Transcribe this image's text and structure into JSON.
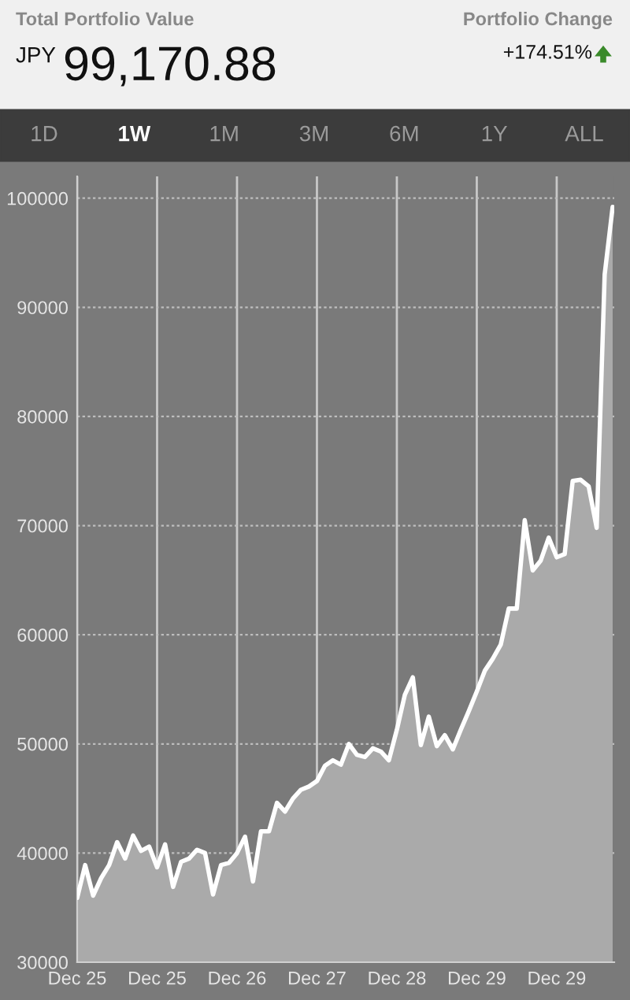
{
  "chart_data": {
    "type": "area",
    "title": "Total Portfolio Value",
    "subtitle": "99,170.88",
    "annotations": [
      "JPY",
      "Portfolio Change",
      "+174.51%",
      "1D",
      "1W",
      "1M",
      "3M",
      "6M",
      "1Y",
      "ALL"
    ],
    "categories": [
      "Dec 25",
      null,
      null,
      null,
      null,
      null,
      null,
      null,
      null,
      null,
      "Dec 25",
      null,
      null,
      null,
      null,
      null,
      null,
      null,
      null,
      null,
      "Dec 26",
      null,
      null,
      null,
      null,
      null,
      null,
      null,
      null,
      null,
      "Dec 27",
      null,
      null,
      null,
      null,
      null,
      null,
      null,
      null,
      null,
      "Dec 28",
      null,
      null,
      null,
      null,
      null,
      null,
      null,
      null,
      null,
      "Dec 29",
      null,
      null,
      null,
      null,
      null,
      null,
      null,
      null,
      null,
      "Dec 29",
      null,
      null,
      null,
      null,
      null,
      null,
      null
    ],
    "series": [
      {
        "color": "#ffffff",
        "values": [
          35900,
          38900,
          36100,
          37700,
          38900,
          41000,
          39500,
          41600,
          40200,
          40600,
          38700,
          40800,
          36900,
          39200,
          39500,
          40300,
          40000,
          36200,
          38900,
          39100,
          40000,
          41500,
          37400,
          42000,
          42000,
          44600,
          43800,
          45000,
          45800,
          46100,
          46600,
          48000,
          48500,
          48100,
          50000,
          49000,
          48800,
          49600,
          49300,
          48500,
          51300,
          54500,
          56100,
          49900,
          52500,
          49800,
          50800,
          49500,
          51300,
          53000,
          54800,
          56700,
          57800,
          59100,
          62400,
          62400,
          70500,
          65900,
          66800,
          68900,
          67100,
          67400,
          74100,
          74200,
          73600,
          69800,
          93000,
          99200
        ]
      }
    ],
    "ylim": [
      30000,
      102000
    ],
    "yticks": [
      30000,
      40000,
      50000,
      60000,
      70000,
      80000,
      90000,
      100000
    ],
    "grid": true,
    "legend": false
  }
}
